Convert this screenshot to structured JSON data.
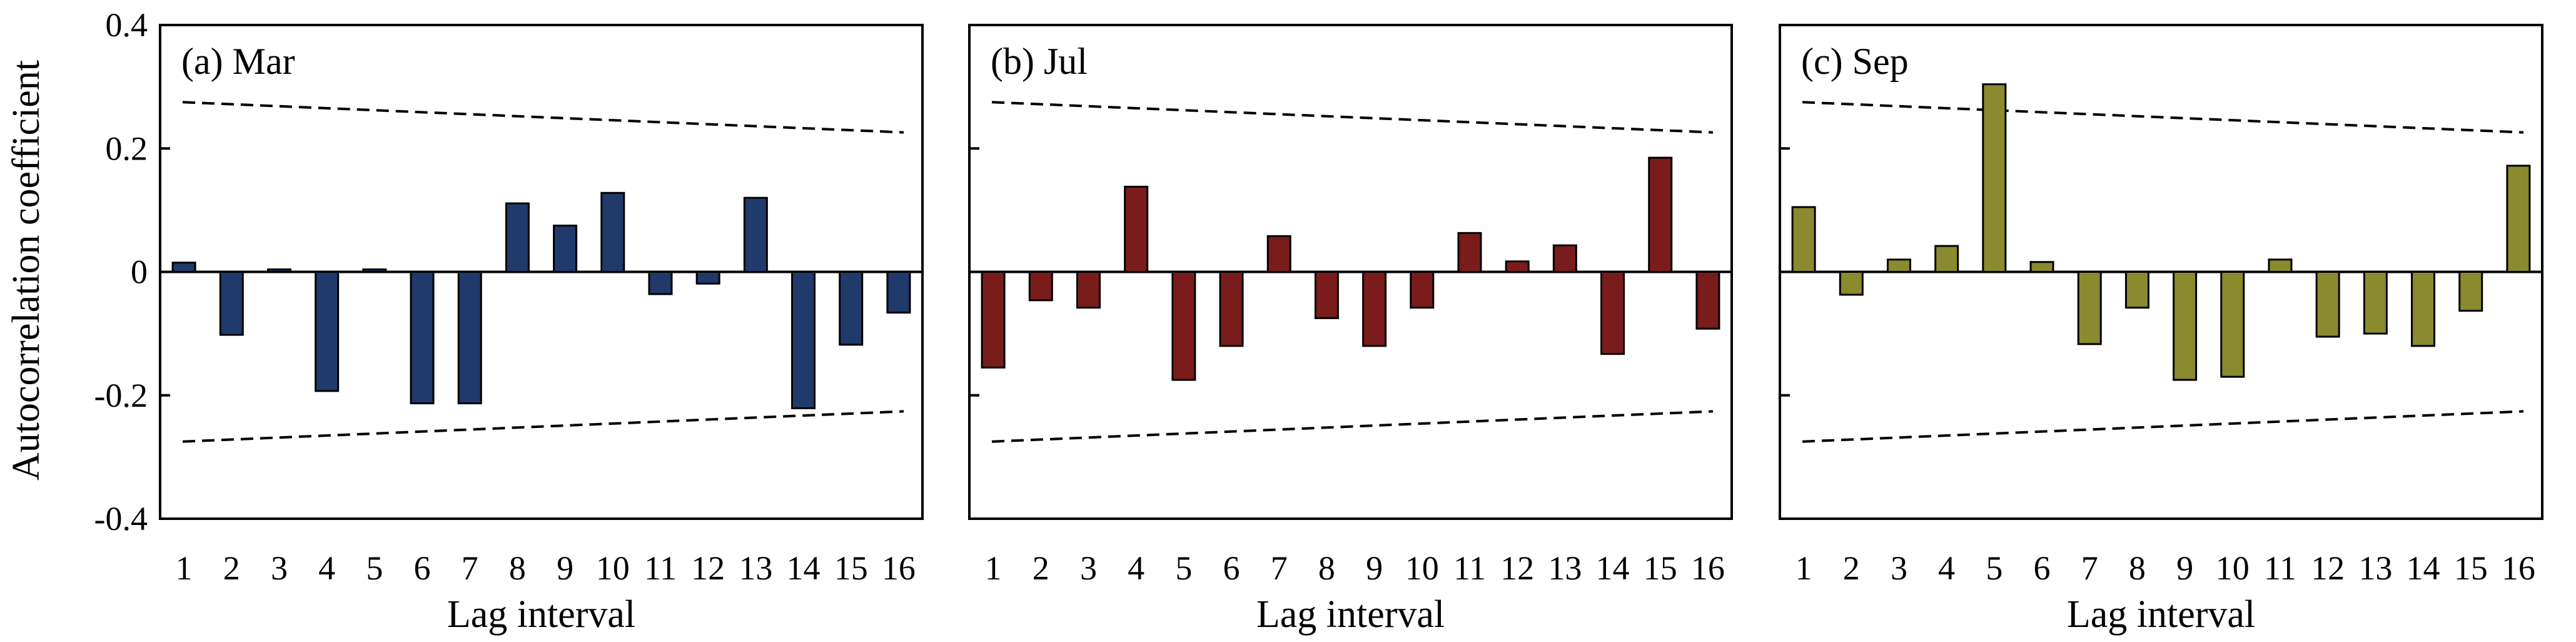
{
  "chart_data": [
    {
      "type": "bar",
      "title": "(a)  Mar",
      "xlabel": "Lag interval",
      "ylabel": "Autocorrelation coefficient",
      "ylim": [
        -0.4,
        0.4
      ],
      "yticks": [
        "0.4",
        "0.2",
        "0",
        "-0.2",
        "-0.4"
      ],
      "categories": [
        "1",
        "2",
        "3",
        "4",
        "5",
        "6",
        "7",
        "8",
        "9",
        "10",
        "11",
        "12",
        "13",
        "14",
        "15",
        "16"
      ],
      "values": [
        0.015,
        -0.102,
        0.004,
        -0.193,
        0.004,
        -0.213,
        -0.213,
        0.111,
        0.075,
        0.128,
        -0.036,
        -0.019,
        0.12,
        -0.221,
        -0.118,
        -0.066
      ],
      "confidence_upper": [
        0.275,
        0.226
      ],
      "confidence_lower": [
        -0.275,
        -0.226
      ],
      "color": "#1f3a6b"
    },
    {
      "type": "bar",
      "title": "(b)  Jul",
      "xlabel": "Lag interval",
      "ylabel": "",
      "ylim": [
        -0.4,
        0.4
      ],
      "yticks": [],
      "categories": [
        "1",
        "2",
        "3",
        "4",
        "5",
        "6",
        "7",
        "8",
        "9",
        "10",
        "11",
        "12",
        "13",
        "14",
        "15",
        "16"
      ],
      "values": [
        -0.155,
        -0.046,
        -0.058,
        0.138,
        -0.175,
        -0.12,
        0.058,
        -0.075,
        -0.12,
        -0.058,
        0.063,
        0.017,
        0.043,
        -0.133,
        0.185,
        -0.092
      ],
      "confidence_upper": [
        0.275,
        0.226
      ],
      "confidence_lower": [
        -0.275,
        -0.226
      ],
      "color": "#7a1c1c"
    },
    {
      "type": "bar",
      "title": "(c)  Sep",
      "xlabel": "Lag interval",
      "ylabel": "",
      "ylim": [
        -0.4,
        0.4
      ],
      "yticks": [],
      "categories": [
        "1",
        "2",
        "3",
        "4",
        "5",
        "6",
        "7",
        "8",
        "9",
        "10",
        "11",
        "12",
        "13",
        "14",
        "15",
        "16"
      ],
      "values": [
        0.105,
        -0.037,
        0.02,
        0.042,
        0.304,
        0.016,
        -0.117,
        -0.058,
        -0.175,
        -0.17,
        0.02,
        -0.105,
        -0.1,
        -0.12,
        -0.063,
        0.172
      ],
      "confidence_upper": [
        0.275,
        0.226
      ],
      "confidence_lower": [
        -0.275,
        -0.226
      ],
      "color": "#8a8a2e"
    }
  ]
}
